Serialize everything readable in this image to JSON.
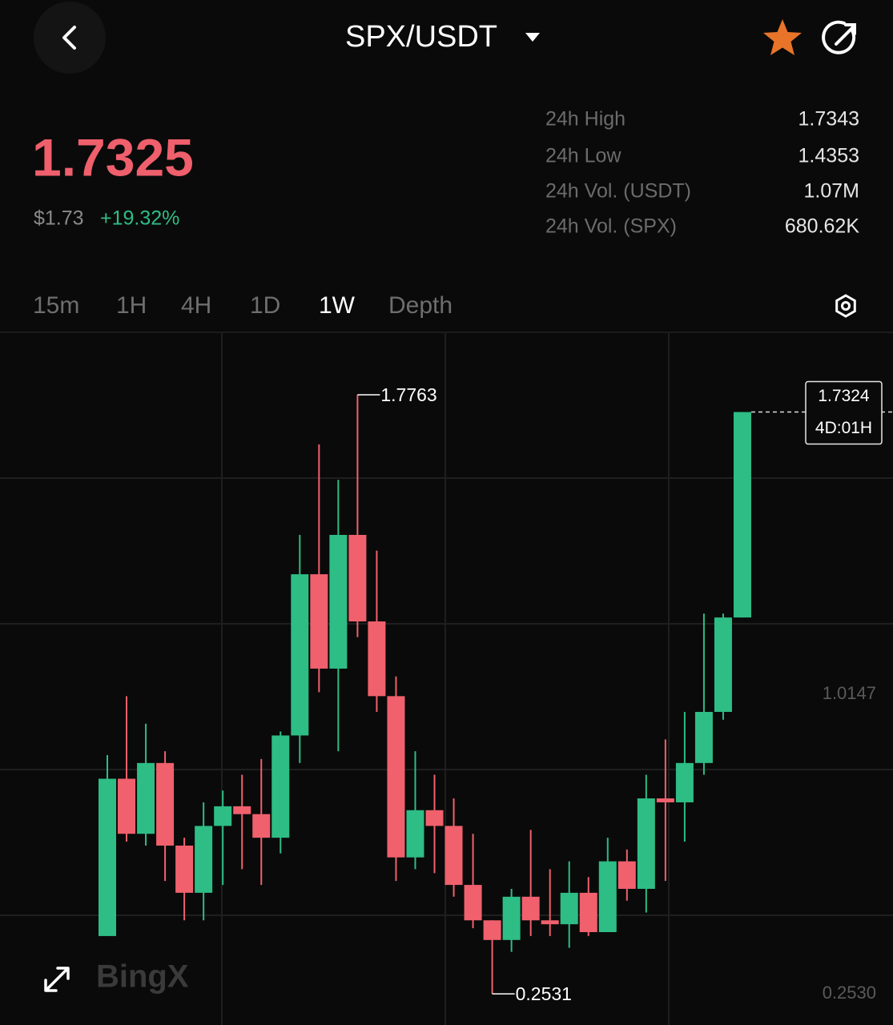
{
  "header": {
    "title": "SPX/USDT"
  },
  "price": {
    "last": "1.7325",
    "usd": "$1.73",
    "change": "+19.32%"
  },
  "stats": [
    {
      "label": "24h High",
      "value": "1.7343"
    },
    {
      "label": "24h Low",
      "value": "1.4353"
    },
    {
      "label": "24h Vol. (USDT)",
      "value": "1.07M"
    },
    {
      "label": "24h Vol. (SPX)",
      "value": "680.62K"
    }
  ],
  "tabs": [
    "15m",
    "1H",
    "4H",
    "1D",
    "1W",
    "Depth"
  ],
  "active_tab": 4,
  "watermark": "BingX",
  "chart_data": {
    "type": "candlestick",
    "open": [
      0.4,
      0.8,
      0.66,
      0.84,
      0.63,
      0.51,
      0.68,
      0.73,
      0.71,
      0.65,
      0.91,
      1.32,
      1.08,
      1.42,
      1.2,
      1.01,
      0.6,
      0.72,
      0.68,
      0.53,
      0.44,
      0.39,
      0.5,
      0.44,
      0.43,
      0.51,
      0.41,
      0.59,
      0.52,
      0.75,
      0.74,
      0.84,
      0.97,
      1.21
    ],
    "high": [
      0.86,
      1.01,
      0.94,
      0.87,
      0.65,
      0.74,
      0.77,
      0.81,
      0.85,
      0.92,
      1.42,
      1.65,
      1.56,
      1.7763,
      1.38,
      1.06,
      0.87,
      0.81,
      0.75,
      0.66,
      0.44,
      0.52,
      0.67,
      0.57,
      0.59,
      0.55,
      0.65,
      0.62,
      0.81,
      0.9,
      0.97,
      1.22,
      1.22,
      1.7324
    ],
    "low": [
      0.4,
      0.64,
      0.63,
      0.54,
      0.44,
      0.44,
      0.53,
      0.57,
      0.53,
      0.61,
      0.84,
      1.02,
      0.87,
      1.16,
      0.97,
      0.54,
      0.57,
      0.56,
      0.5,
      0.42,
      0.2531,
      0.36,
      0.4,
      0.4,
      0.37,
      0.4,
      0.41,
      0.49,
      0.46,
      0.54,
      0.64,
      0.81,
      0.95,
      1.21
    ],
    "close": [
      0.8,
      0.66,
      0.84,
      0.63,
      0.51,
      0.68,
      0.73,
      0.71,
      0.65,
      0.91,
      1.32,
      1.08,
      1.42,
      1.2,
      1.01,
      0.6,
      0.72,
      0.68,
      0.53,
      0.44,
      0.39,
      0.5,
      0.44,
      0.43,
      0.51,
      0.41,
      0.59,
      0.52,
      0.75,
      0.74,
      0.84,
      0.97,
      1.21,
      1.7324
    ],
    "colors": {
      "up": "#2ebd85",
      "down": "#f0616d"
    },
    "ylim": [
      0.184,
      1.929
    ],
    "yticks": [
      1.0147,
      {
        "value": 0.253,
        "label": "0.2530"
      }
    ],
    "countdown": "4D:01H"
  }
}
